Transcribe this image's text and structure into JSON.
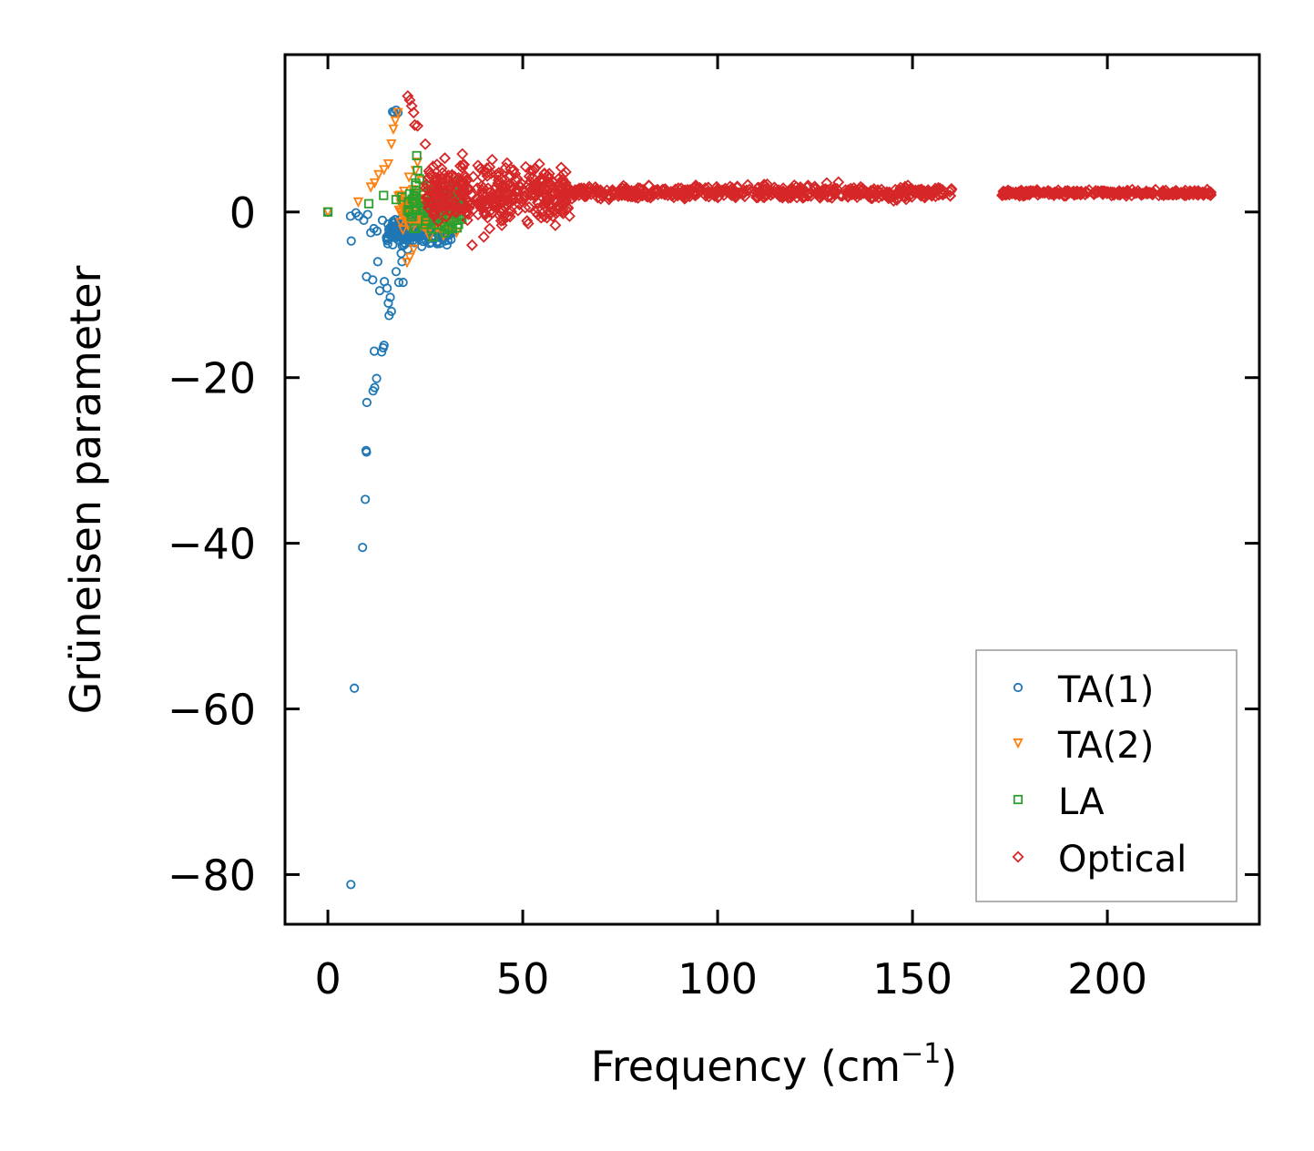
{
  "chart_data": {
    "type": "scatter",
    "title": "",
    "xlabel_base": "Frequency (cm",
    "xlabel_sup": "−1",
    "xlabel_tail": ")",
    "ylabel": "Grüneisen parameter",
    "xlim": [
      -11,
      239
    ],
    "ylim": [
      -86,
      19
    ],
    "xticks": [
      0,
      50,
      100,
      150,
      200
    ],
    "xtick_labels": [
      "0",
      "50",
      "100",
      "150",
      "200"
    ],
    "yticks": [
      0,
      -20,
      -40,
      -60,
      -80
    ],
    "ytick_labels": [
      "0",
      "−20",
      "−40",
      "−60",
      "−80"
    ],
    "grid": false,
    "legend_position": "bottom-right",
    "series": [
      {
        "name": "TA(1)",
        "marker": "circle",
        "color": "#1f77b4",
        "points": [
          [
            0,
            0
          ],
          [
            5.9,
            -81.2
          ],
          [
            6.8,
            -57.5
          ],
          [
            8.9,
            -40.5
          ],
          [
            9.6,
            -34.7
          ],
          [
            9.8,
            -28.8
          ],
          [
            9.9,
            -29.0
          ],
          [
            10.0,
            -23.0
          ],
          [
            11.6,
            -21.6
          ],
          [
            12.0,
            -21.2
          ],
          [
            12.5,
            -20.1
          ],
          [
            11.9,
            -16.8
          ],
          [
            13.8,
            -16.9
          ],
          [
            14.2,
            -16.4
          ],
          [
            14.4,
            -16.1
          ],
          [
            9.9,
            -7.8
          ],
          [
            11.5,
            -8.2
          ],
          [
            12.8,
            -6.0
          ],
          [
            14.5,
            -8.4
          ],
          [
            13.3,
            -9.5
          ],
          [
            15.2,
            -9.2
          ],
          [
            16.0,
            -10.3
          ],
          [
            15.5,
            -11.0
          ],
          [
            16.3,
            -12.0
          ],
          [
            15.7,
            -12.5
          ],
          [
            18.2,
            -8.5
          ],
          [
            19.3,
            -8.5
          ],
          [
            17.5,
            -7.2
          ],
          [
            19.0,
            -6.0
          ],
          [
            18.8,
            -5.0
          ],
          [
            6.0,
            -3.5
          ],
          [
            5.8,
            -0.5
          ],
          [
            7.2,
            -0.1
          ],
          [
            7.9,
            -0.5
          ],
          [
            9.2,
            -1.0
          ],
          [
            10.2,
            -0.3
          ],
          [
            11.0,
            -2.5
          ],
          [
            11.8,
            -2.0
          ],
          [
            12.6,
            -2.3
          ],
          [
            14.0,
            -1.0
          ],
          [
            17.0,
            12.0
          ],
          [
            17.5,
            12.3
          ],
          [
            18.0,
            12.0
          ],
          [
            16.6,
            12.1
          ],
          [
            20.0,
            -2.0
          ],
          [
            21.0,
            -3.5
          ],
          [
            22.0,
            -3.0
          ],
          [
            23.0,
            -2.8
          ],
          [
            24.0,
            -2.4
          ],
          [
            25.0,
            -2.0
          ],
          [
            26.0,
            -2.3
          ],
          [
            27.0,
            -1.8
          ],
          [
            28.0,
            -2.2
          ],
          [
            29.0,
            -2.5
          ],
          [
            30.0,
            -3.5
          ],
          [
            31.0,
            -2.8
          ],
          [
            32.0,
            -2.5
          ],
          [
            19.5,
            -4.0
          ],
          [
            20.5,
            -4.5
          ],
          [
            21.5,
            -1.0
          ],
          [
            22.5,
            -0.5
          ],
          [
            18.5,
            -3.0
          ],
          [
            19.8,
            -2.6
          ],
          [
            24.5,
            -1.2
          ]
        ],
        "cluster": {
          "x_range": [
            15,
            32
          ],
          "y_range": [
            -4.5,
            -0.2
          ],
          "count": 220
        }
      },
      {
        "name": "TA(2)",
        "marker": "triangle-down",
        "color": "#ff7f0e",
        "points": [
          [
            0,
            0
          ],
          [
            7.8,
            1.2
          ],
          [
            11.0,
            3.0
          ],
          [
            12.0,
            3.5
          ],
          [
            13.0,
            4.5
          ],
          [
            14.4,
            5.1
          ],
          [
            15.5,
            5.8
          ],
          [
            16.3,
            8.2
          ],
          [
            16.8,
            10.0
          ],
          [
            17.3,
            11.0
          ],
          [
            18.0,
            12.0
          ],
          [
            19.5,
            2.5
          ],
          [
            20.3,
            -6.1
          ],
          [
            21.0,
            -5.5
          ],
          [
            22.0,
            -4.5
          ],
          [
            23.0,
            6.0
          ],
          [
            22.5,
            5.0
          ],
          [
            24.0,
            3.8
          ],
          [
            25.5,
            2.8
          ],
          [
            27.0,
            1.5
          ],
          [
            29.0,
            0.0
          ],
          [
            31.0,
            -1.5
          ],
          [
            33.0,
            -2.5
          ],
          [
            18.5,
            2.0
          ],
          [
            20.8,
            4.2
          ]
        ],
        "cluster": {
          "x_range": [
            18,
            33
          ],
          "y_range": [
            -3.5,
            3.5
          ],
          "count": 130
        }
      },
      {
        "name": "LA",
        "marker": "square",
        "color": "#2ca02c",
        "points": [
          [
            0,
            0
          ],
          [
            10.5,
            1.0
          ],
          [
            14.3,
            2.0
          ],
          [
            17.5,
            1.5
          ],
          [
            19.0,
            1.8
          ],
          [
            21.0,
            2.2
          ],
          [
            22.5,
            3.5
          ],
          [
            23.0,
            5.0
          ],
          [
            22.8,
            6.8
          ],
          [
            23.5,
            4.0
          ],
          [
            24.5,
            3.0
          ],
          [
            26.0,
            1.0
          ],
          [
            27.5,
            0.0
          ],
          [
            29.0,
            -0.5
          ],
          [
            31.0,
            -0.3
          ],
          [
            33.0,
            -1.0
          ],
          [
            34.0,
            -0.5
          ],
          [
            25.0,
            -1.5
          ],
          [
            27.0,
            -3.0
          ],
          [
            30.0,
            -2.5
          ],
          [
            32.0,
            -2.0
          ],
          [
            33.5,
            -1.5
          ]
        ],
        "cluster": {
          "x_range": [
            20,
            35
          ],
          "y_range": [
            -3,
            4.5
          ],
          "count": 90
        }
      },
      {
        "name": "Optical",
        "marker": "diamond",
        "color": "#d62728",
        "points": [
          [
            20.5,
            14.0
          ],
          [
            21.0,
            13.5
          ],
          [
            21.5,
            12.8
          ],
          [
            22.0,
            12.0
          ],
          [
            22.3,
            10.5
          ],
          [
            23.0,
            10.4
          ],
          [
            25.0,
            8.2
          ],
          [
            27.0,
            5.5
          ],
          [
            30.0,
            6.5
          ],
          [
            34.5,
            7.0
          ],
          [
            37.0,
            -4.0
          ],
          [
            40.0,
            -3.0
          ],
          [
            41.5,
            -2.0
          ],
          [
            45.0,
            -1.0
          ],
          [
            52.0,
            5.0
          ],
          [
            61.0,
            3.5
          ],
          [
            60.0,
            0.0
          ],
          [
            62.0,
            -0.5
          ],
          [
            160.0,
            2.8
          ],
          [
            131.0,
            3.6
          ],
          [
            128.0,
            3.5
          ],
          [
            123.0,
            3.0
          ],
          [
            140.0,
            2.5
          ],
          [
            155.0,
            2.4
          ],
          [
            173.0,
            2.0
          ],
          [
            180.0,
            2.1
          ],
          [
            190.0,
            2.3
          ],
          [
            200.0,
            2.4
          ],
          [
            205.0,
            2.5
          ],
          [
            210.0,
            2.5
          ],
          [
            215.0,
            2.6
          ],
          [
            220.0,
            2.6
          ],
          [
            226.5,
            2.4
          ]
        ],
        "clusters": [
          {
            "x_range": [
              25,
              62
            ],
            "y_range": [
              -3,
              7
            ],
            "count": 380
          },
          {
            "x_range": [
              60,
              160
            ],
            "y_range": [
              1.2,
              3.5
            ],
            "count": 520
          },
          {
            "x_range": [
              173,
              227
            ],
            "y_range": [
              1.8,
              2.8
            ],
            "count": 260
          }
        ]
      }
    ]
  }
}
